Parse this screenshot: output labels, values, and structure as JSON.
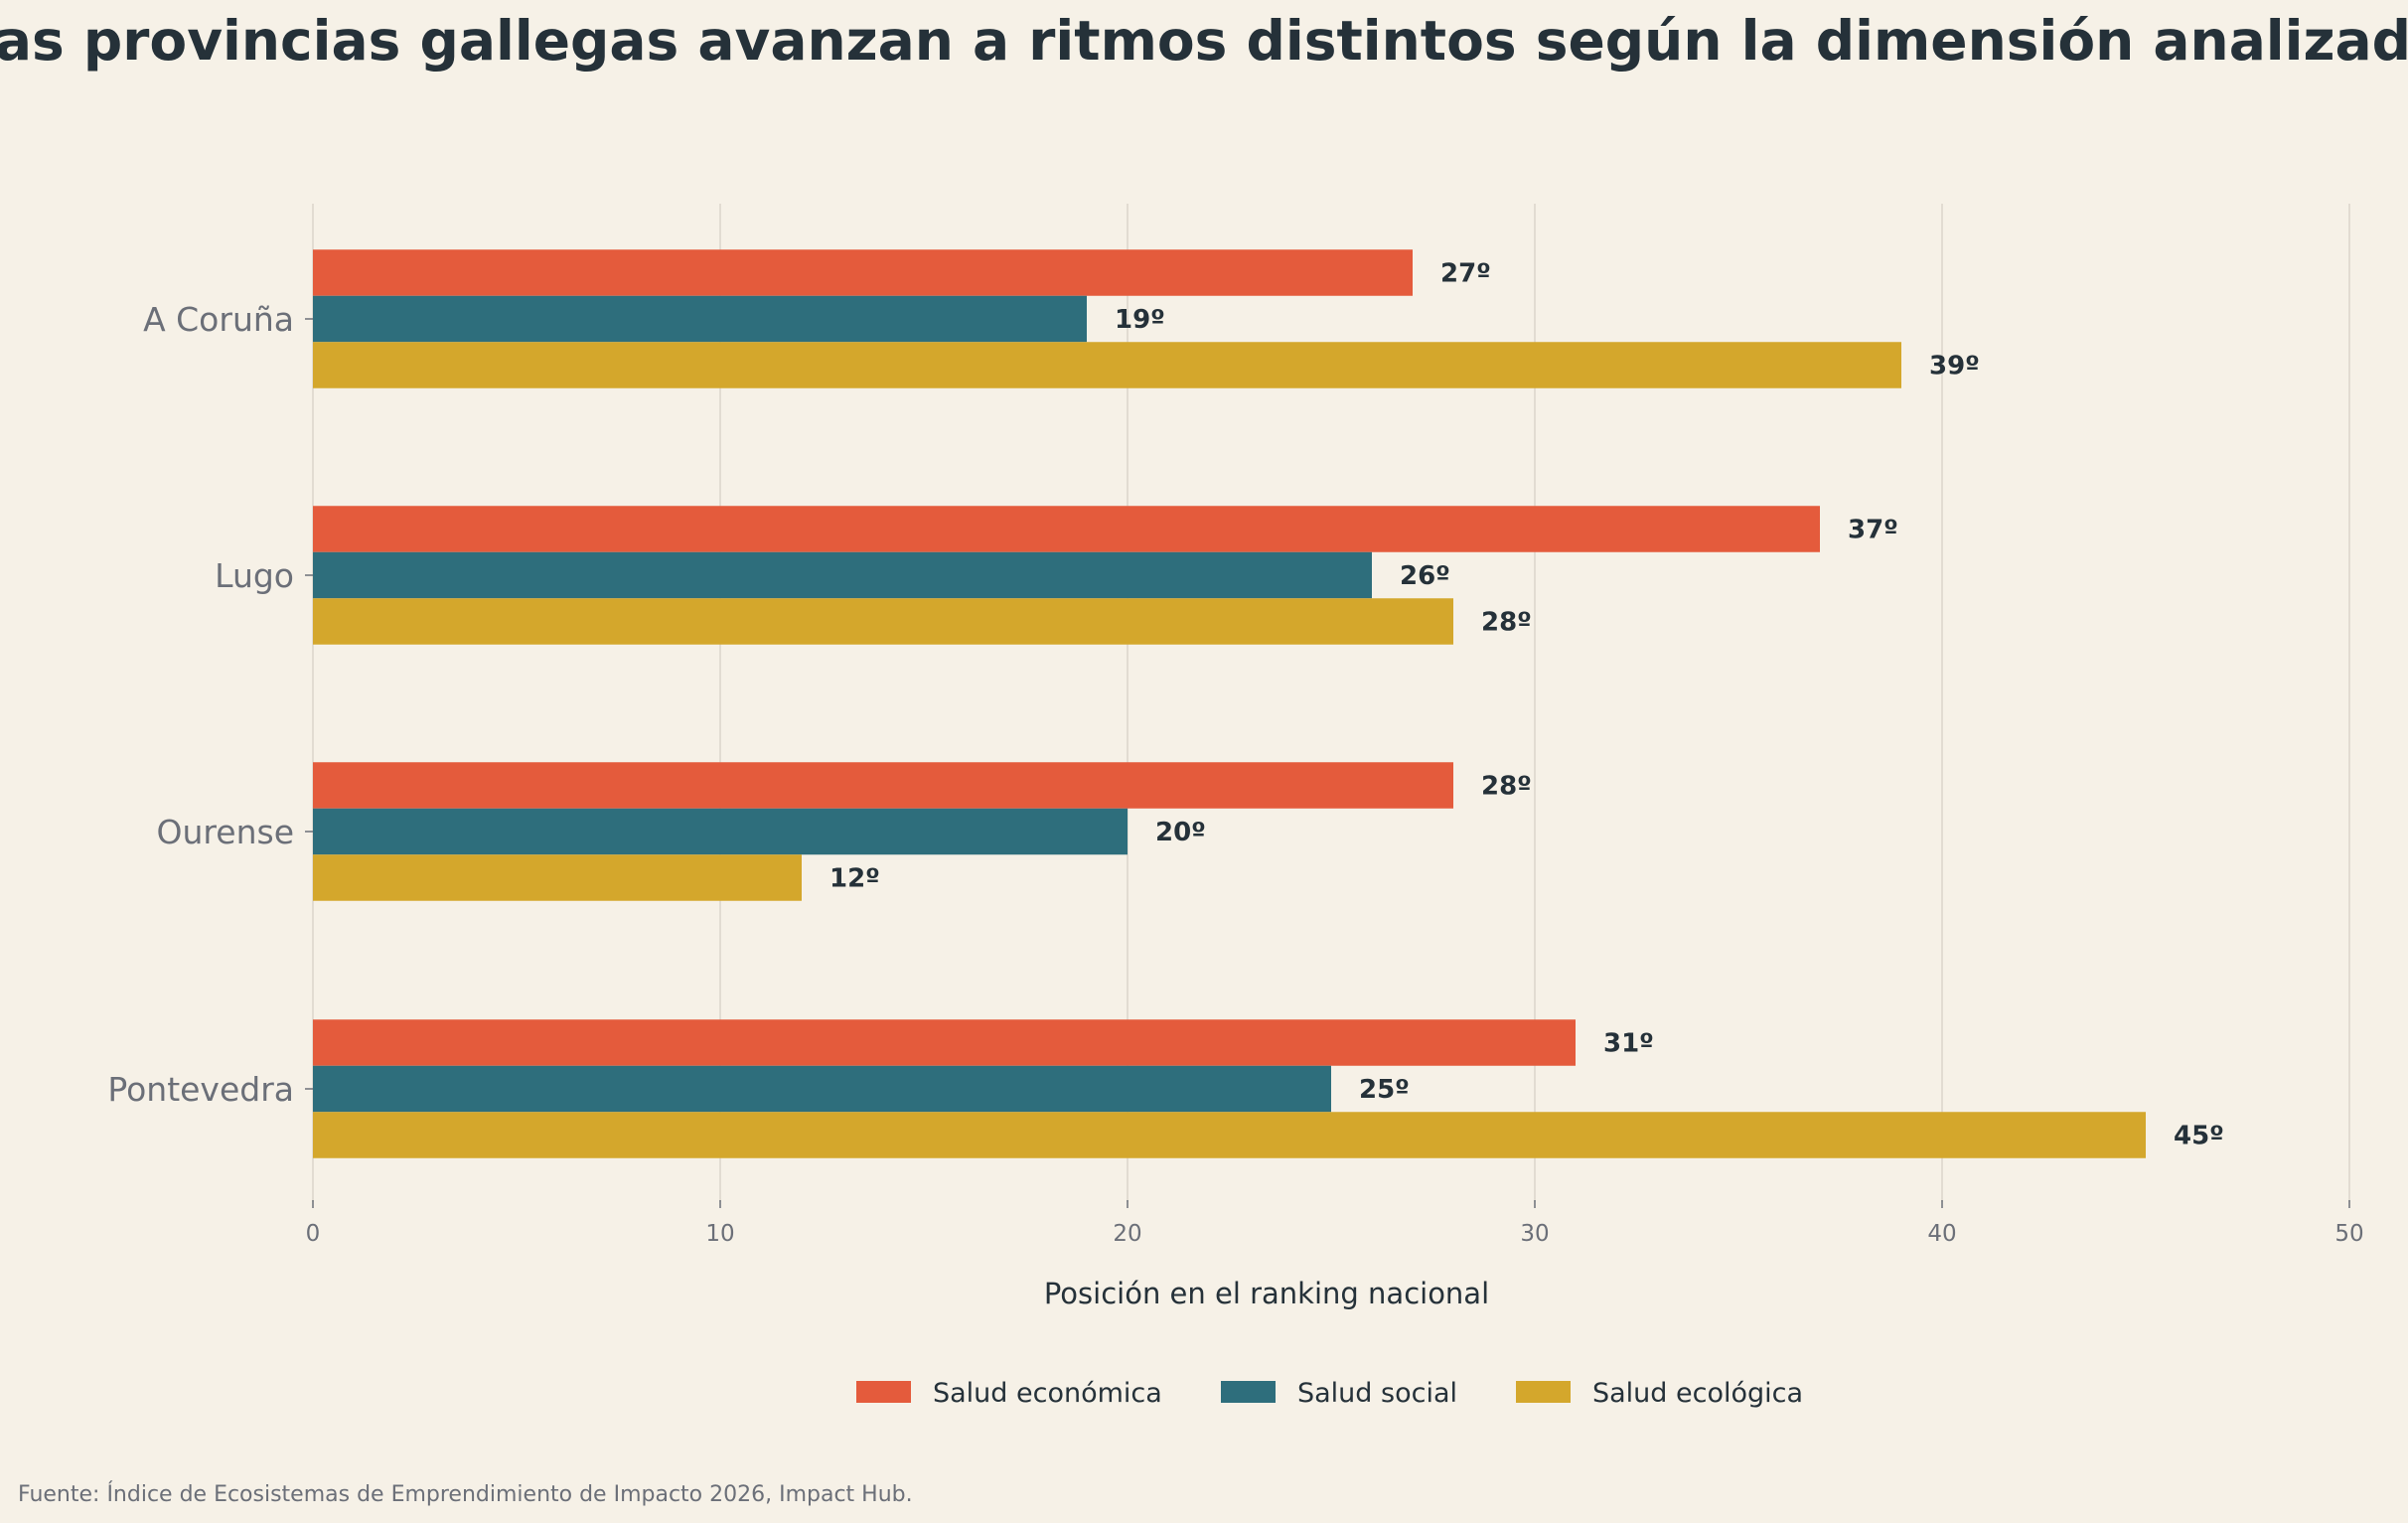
{
  "chart_data": {
    "type": "bar",
    "orientation": "horizontal",
    "title": "Las provincias gallegas avanzan a ritmos distintos según la dimensión analizada",
    "xlabel": "Posición en el ranking nacional",
    "ylabel": "",
    "xlim": [
      0,
      50
    ],
    "xticks": [
      0,
      10,
      20,
      30,
      40,
      50
    ],
    "grid": "vertical",
    "legend_position": "bottom-center",
    "categories": [
      "A Coruña",
      "Lugo",
      "Ourense",
      "Pontevedra"
    ],
    "series": [
      {
        "name": "Salud económica",
        "color": "#e45b3c",
        "values": [
          27,
          37,
          28,
          31
        ],
        "labels": [
          "27º",
          "37º",
          "28º",
          "31º"
        ]
      },
      {
        "name": "Salud social",
        "color": "#2e6e7c",
        "values": [
          19,
          26,
          20,
          25
        ],
        "labels": [
          "19º",
          "26º",
          "20º",
          "25º"
        ]
      },
      {
        "name": "Salud ecológica",
        "color": "#d4a72c",
        "values": [
          39,
          28,
          12,
          45
        ],
        "labels": [
          "39º",
          "28º",
          "12º",
          "45º"
        ]
      }
    ],
    "source": "Fuente: Índice de Ecosistemas de Emprendimiento de Impacto 2026, Impact Hub."
  }
}
